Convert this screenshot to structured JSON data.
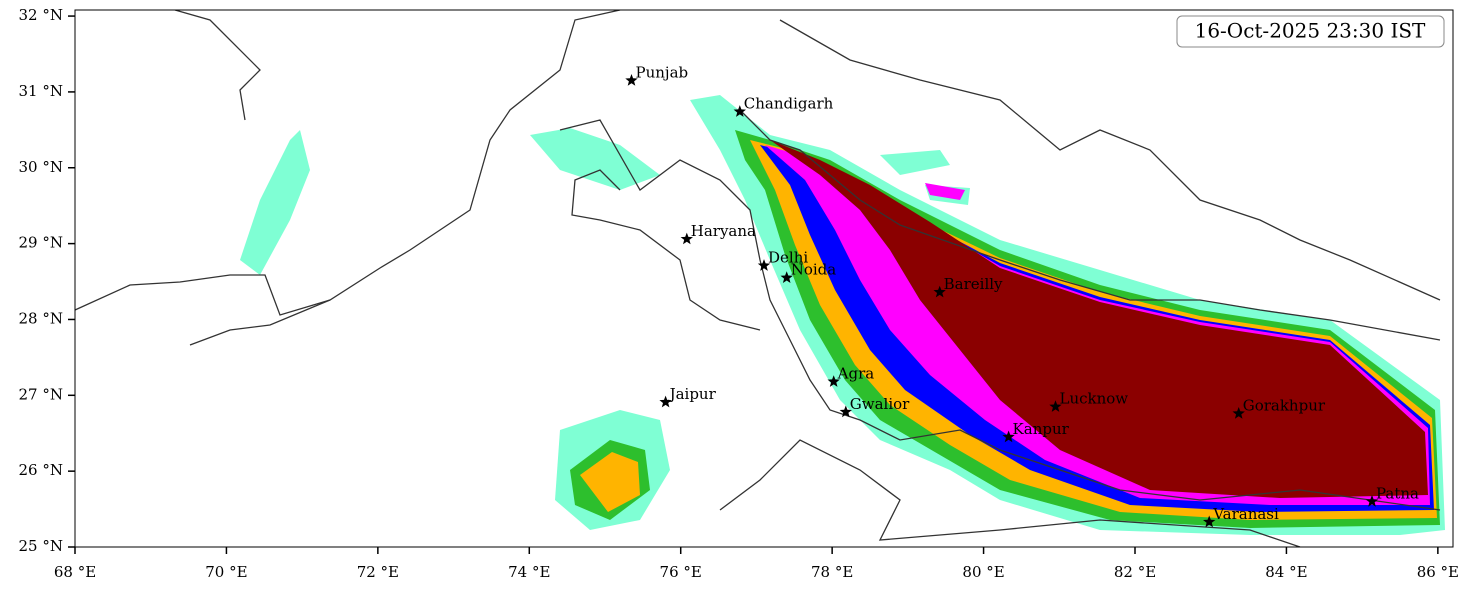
{
  "map": {
    "timestamp": "16-Oct-2025 23:30 IST",
    "xlim": [
      68,
      86.2
    ],
    "ylim": [
      25,
      32.08
    ],
    "xticks": [
      {
        "value": 68,
        "label": "68 °E"
      },
      {
        "value": 70,
        "label": "70 °E"
      },
      {
        "value": 72,
        "label": "72 °E"
      },
      {
        "value": 74,
        "label": "74 °E"
      },
      {
        "value": 76,
        "label": "76 °E"
      },
      {
        "value": 78,
        "label": "78 °E"
      },
      {
        "value": 80,
        "label": "80 °E"
      },
      {
        "value": 82,
        "label": "82 °E"
      },
      {
        "value": 84,
        "label": "84 °E"
      },
      {
        "value": 86,
        "label": "86 °E"
      }
    ],
    "yticks": [
      {
        "value": 25,
        "label": "25 °N"
      },
      {
        "value": 26,
        "label": "26 °N"
      },
      {
        "value": 27,
        "label": "27 °N"
      },
      {
        "value": 28,
        "label": "28 °N"
      },
      {
        "value": 29,
        "label": "29 °N"
      },
      {
        "value": 30,
        "label": "30 °N"
      },
      {
        "value": 31,
        "label": "31 °N"
      },
      {
        "value": 32,
        "label": "32 °N"
      }
    ],
    "cities": [
      {
        "name": "Punjab",
        "lon": 75.35,
        "lat": 31.15
      },
      {
        "name": "Chandigarh",
        "lon": 76.78,
        "lat": 30.74
      },
      {
        "name": "Haryana",
        "lon": 76.08,
        "lat": 29.06
      },
      {
        "name": "Delhi",
        "lon": 77.1,
        "lat": 28.71
      },
      {
        "name": "Noida",
        "lon": 77.4,
        "lat": 28.55
      },
      {
        "name": "Bareilly",
        "lon": 79.42,
        "lat": 28.36
      },
      {
        "name": "Agra",
        "lon": 78.02,
        "lat": 27.18
      },
      {
        "name": "Jaipur",
        "lon": 75.8,
        "lat": 26.91
      },
      {
        "name": "Gwalior",
        "lon": 78.18,
        "lat": 26.78
      },
      {
        "name": "Lucknow",
        "lon": 80.95,
        "lat": 26.85
      },
      {
        "name": "Kanpur",
        "lon": 80.33,
        "lat": 26.45
      },
      {
        "name": "Gorakhpur",
        "lon": 83.37,
        "lat": 26.76
      },
      {
        "name": "Varanasi",
        "lon": 82.98,
        "lat": 25.33
      },
      {
        "name": "Patna",
        "lon": 85.13,
        "lat": 25.6
      }
    ]
  }
}
